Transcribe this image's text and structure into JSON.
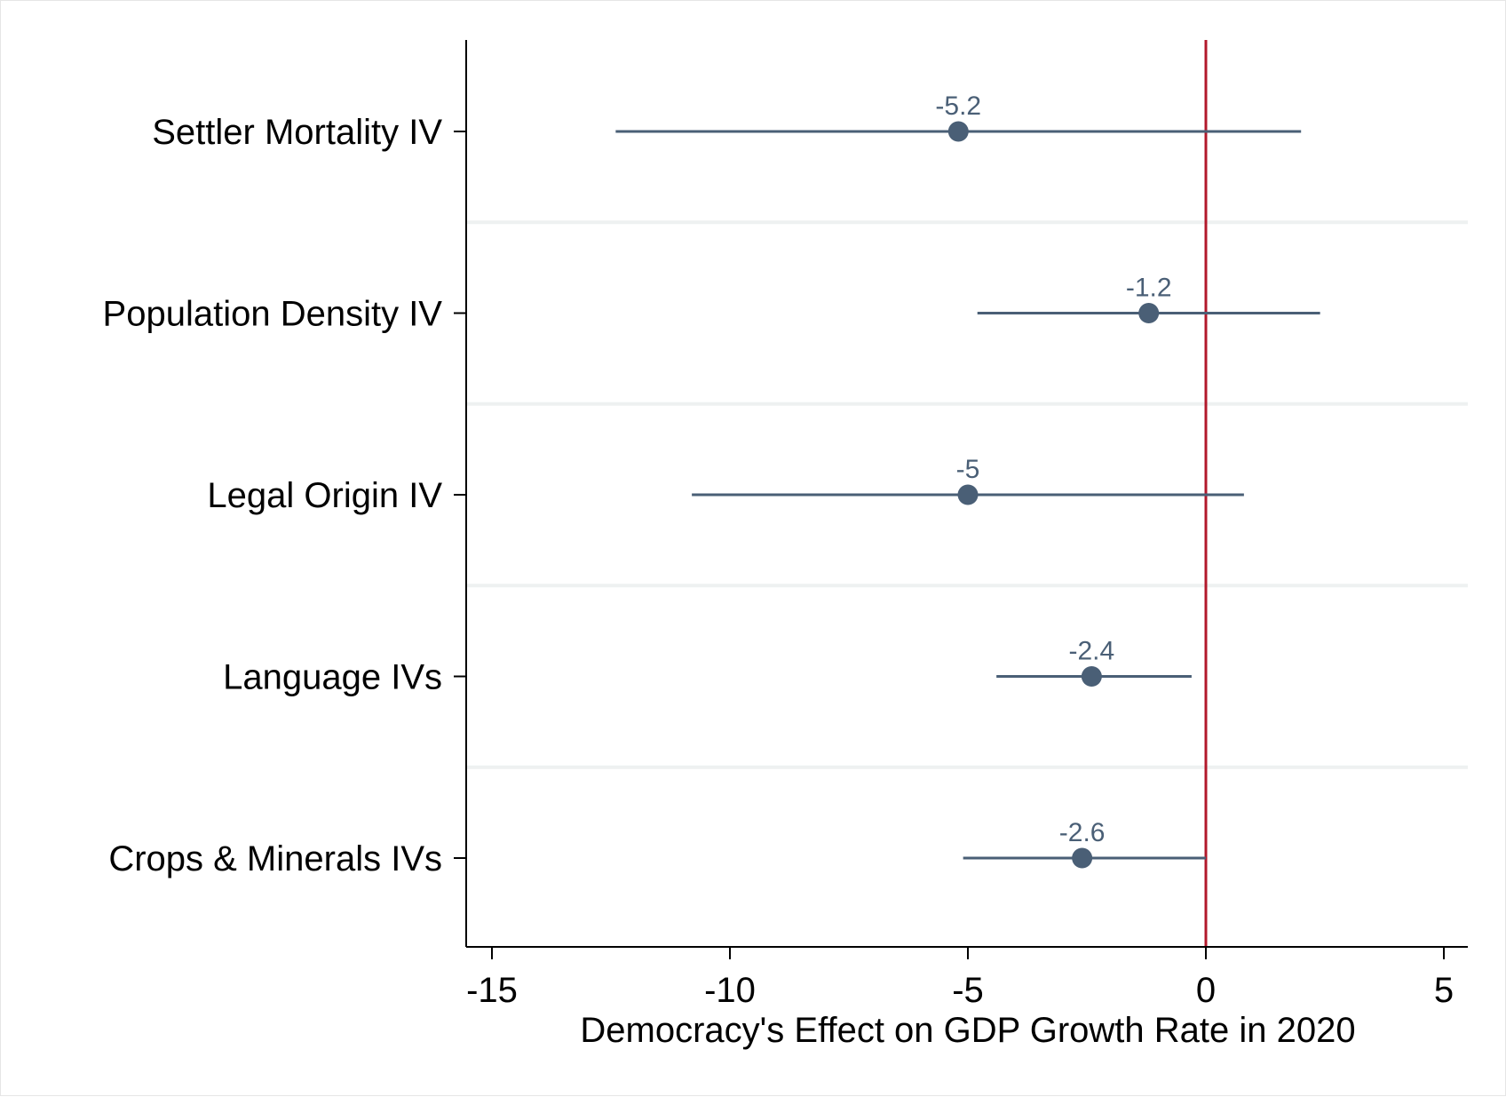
{
  "chart_data": {
    "type": "coefficient_plot",
    "title": "",
    "xlabel": "Democracy's Effect on GDP Growth Rate in 2020",
    "ylabel": "",
    "xlim": [
      -15.5,
      5.5
    ],
    "x_ticks": [
      -15,
      -10,
      -5,
      0,
      5
    ],
    "x_tick_labels": [
      "-15",
      "-10",
      "-5",
      "0",
      "5"
    ],
    "grid": "horizontal separators between rows",
    "reference_line": {
      "x": 0,
      "color": "#b2182b"
    },
    "marker_color": "#4a5f76",
    "rows": [
      {
        "label": "Settler Mortality IV",
        "estimate": -5.2,
        "ci_low": -12.4,
        "ci_high": 2.0,
        "value_label": "-5.2"
      },
      {
        "label": "Population Density IV",
        "estimate": -1.2,
        "ci_low": -4.8,
        "ci_high": 2.4,
        "value_label": "-1.2"
      },
      {
        "label": "Legal Origin IV",
        "estimate": -5.0,
        "ci_low": -10.8,
        "ci_high": 0.8,
        "value_label": "-5"
      },
      {
        "label": "Language IVs",
        "estimate": -2.4,
        "ci_low": -4.4,
        "ci_high": -0.3,
        "value_label": "-2.4"
      },
      {
        "label": "Crops & Minerals IVs",
        "estimate": -2.6,
        "ci_low": -5.1,
        "ci_high": 0.0,
        "value_label": "-2.6"
      }
    ]
  }
}
